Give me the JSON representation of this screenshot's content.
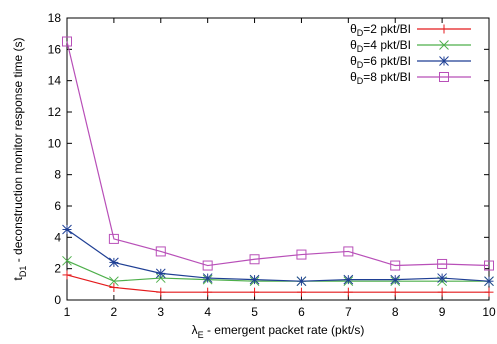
{
  "chart_data": {
    "type": "line",
    "ylabel": "t_D1 - deconstruction monitor response time (s)",
    "ylabel_main": "t",
    "ylabel_sub": "D1",
    "ylabel_rest": " - deconstruction monitor response time (s)",
    "xlabel": "λ_E - emergent packet rate (pkt/s)",
    "xlabel_main": "λ",
    "xlabel_sub": "E",
    "xlabel_rest": " - emergent packet rate (pkt/s)",
    "x": [
      1,
      2,
      3,
      4,
      5,
      6,
      7,
      8,
      9,
      10
    ],
    "xlim": [
      1,
      10
    ],
    "ylim": [
      0,
      18
    ],
    "xticks": [
      "1",
      "2",
      "3",
      "4",
      "5",
      "6",
      "7",
      "8",
      "9",
      "10"
    ],
    "yticks": [
      "0",
      "2",
      "4",
      "6",
      "8",
      "10",
      "12",
      "14",
      "16",
      "18"
    ],
    "grid": false,
    "legend_position": "top-right",
    "series": [
      {
        "name": "θD=2 pkt/BI",
        "name_main": "θ",
        "name_sub": "D",
        "name_rest": "=2 pkt/BI",
        "marker": "plus",
        "color": "#e41a1c",
        "values": [
          1.6,
          0.8,
          0.5,
          0.5,
          0.5,
          0.5,
          0.5,
          0.5,
          0.5,
          0.5
        ]
      },
      {
        "name": "θD=4 pkt/BI",
        "name_main": "θ",
        "name_sub": "D",
        "name_rest": "=4 pkt/BI",
        "marker": "cross",
        "color": "#4daf4a",
        "values": [
          2.5,
          1.2,
          1.4,
          1.3,
          1.2,
          1.2,
          1.2,
          1.2,
          1.2,
          1.2
        ]
      },
      {
        "name": "θD=6 pkt/BI",
        "name_main": "θ",
        "name_sub": "D",
        "name_rest": "=6 pkt/BI",
        "marker": "star",
        "color": "#1f3f94",
        "values": [
          4.5,
          2.4,
          1.7,
          1.4,
          1.3,
          1.2,
          1.3,
          1.3,
          1.4,
          1.2
        ]
      },
      {
        "name": "θD=8 pkt/BI",
        "name_main": "θ",
        "name_sub": "D",
        "name_rest": "=8 pkt/BI",
        "marker": "square",
        "color": "#b84fb8",
        "values": [
          16.5,
          3.9,
          3.1,
          2.2,
          2.6,
          2.9,
          3.1,
          2.2,
          2.3,
          2.2
        ]
      }
    ]
  }
}
